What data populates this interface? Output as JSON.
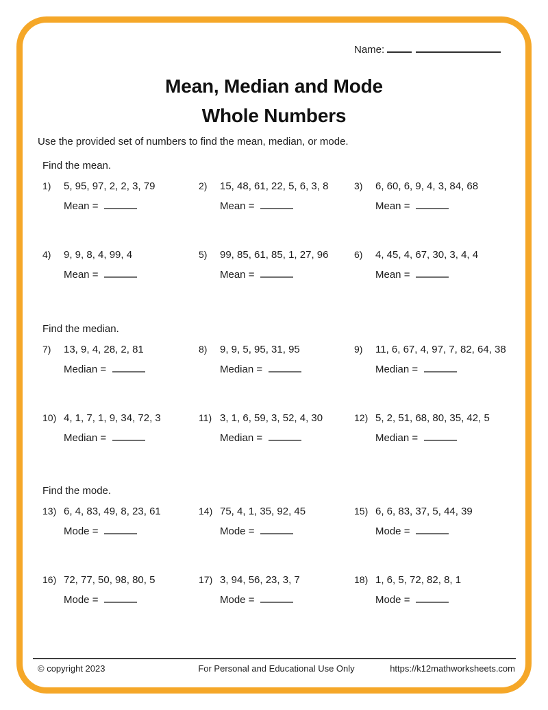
{
  "page": {
    "border_color": "#F5A728",
    "blank_color": "#6f6f6f"
  },
  "header": {
    "name_label": "Name:",
    "title_line1": "Mean, Median and Mode",
    "title_line2": "Whole Numbers",
    "instruction": "Use the provided set of numbers to find the mean, median, or mode."
  },
  "sections": [
    {
      "heading": "Find the mean.",
      "answer_label": "Mean =",
      "problems": [
        {
          "num": "1)",
          "list": "5, 95, 97, 2, 2, 3, 79"
        },
        {
          "num": "2)",
          "list": "15, 48, 61, 22, 5, 6, 3, 8"
        },
        {
          "num": "3)",
          "list": "6, 60, 6, 9, 4, 3, 84, 68"
        },
        {
          "num": "4)",
          "list": "9, 9, 8, 4, 99, 4"
        },
        {
          "num": "5)",
          "list": "99, 85, 61, 85, 1, 27, 96"
        },
        {
          "num": "6)",
          "list": "4, 45, 4, 67, 30, 3, 4, 4"
        }
      ]
    },
    {
      "heading": "Find the median.",
      "answer_label": "Median =",
      "problems": [
        {
          "num": "7)",
          "list": "13, 9, 4, 28, 2, 81"
        },
        {
          "num": "8)",
          "list": "9, 9, 5, 95, 31, 95"
        },
        {
          "num": "9)",
          "list": "11, 6, 67, 4, 97, 7, 82, 64, 38"
        },
        {
          "num": "10)",
          "list": "4, 1, 7, 1, 9, 34, 72, 3"
        },
        {
          "num": "11)",
          "list": "3, 1, 6, 59, 3, 52, 4, 30"
        },
        {
          "num": "12)",
          "list": "5, 2, 51, 68, 80, 35, 42, 5"
        }
      ]
    },
    {
      "heading": "Find the mode.",
      "answer_label": "Mode =",
      "problems": [
        {
          "num": "13)",
          "list": "6, 4, 83, 49, 8, 23, 61"
        },
        {
          "num": "14)",
          "list": "75, 4, 1, 35, 92, 45"
        },
        {
          "num": "15)",
          "list": "6, 6, 83, 37, 5, 44, 39"
        },
        {
          "num": "16)",
          "list": "72, 77, 50, 98, 80, 5"
        },
        {
          "num": "17)",
          "list": "3, 94, 56, 23, 3, 7"
        },
        {
          "num": "18)",
          "list": "1, 6, 5, 72, 82, 8, 1"
        }
      ]
    }
  ],
  "footer": {
    "copyright": "© copyright 2023",
    "center": "For Personal and Educational Use Only",
    "url": "https://k12mathworksheets.com"
  }
}
